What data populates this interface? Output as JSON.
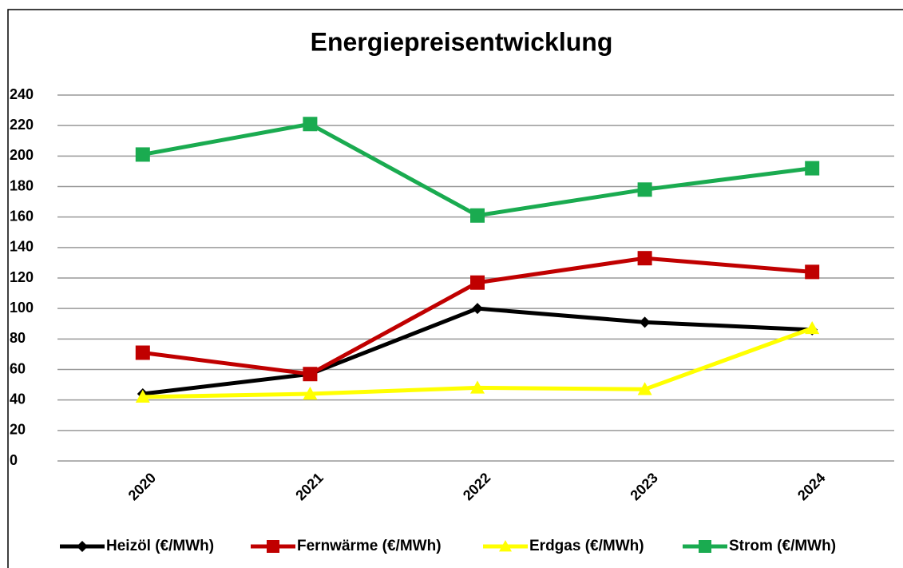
{
  "chart_data": {
    "type": "line",
    "title": "Energiepreisentwicklung",
    "categories": [
      "2020",
      "2021",
      "2022",
      "2023",
      "2024"
    ],
    "series": [
      {
        "name": "Heizöl (€/MWh)",
        "color": "#000000",
        "marker": "diamond",
        "values": [
          44,
          57,
          100,
          91,
          86
        ]
      },
      {
        "name": "Fernwärme (€/MWh)",
        "color": "#c00000",
        "marker": "square",
        "values": [
          71,
          57,
          117,
          133,
          124
        ]
      },
      {
        "name": "Erdgas (€/MWh)",
        "color": "#ffff00",
        "marker": "triangle",
        "values": [
          42,
          44,
          48,
          47,
          87
        ]
      },
      {
        "name": "Strom (€/MWh)",
        "color": "#1aab50",
        "marker": "square",
        "values": [
          201,
          221,
          161,
          178,
          192
        ]
      }
    ],
    "ylim": [
      0,
      240
    ],
    "yticks": [
      0,
      20,
      40,
      60,
      80,
      100,
      120,
      140,
      160,
      180,
      200,
      220,
      240
    ],
    "grid": true,
    "legend": "bottom"
  }
}
